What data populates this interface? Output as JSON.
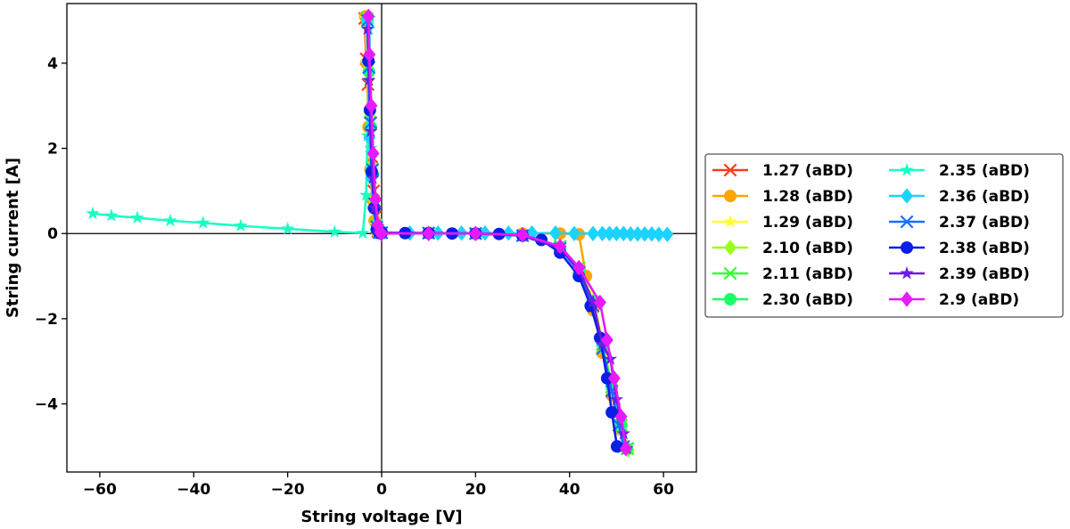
{
  "chart_data": {
    "type": "line",
    "xlabel": "String voltage [V]",
    "ylabel": "String current [A]",
    "xlim": [
      -67,
      67
    ],
    "ylim": [
      -5.6,
      5.4
    ],
    "x_ticks": [
      -60,
      -40,
      -20,
      0,
      20,
      40,
      60
    ],
    "y_ticks": [
      -4,
      -2,
      0,
      2,
      4
    ],
    "x_tick_labels": [
      "−60",
      "−40",
      "−20",
      "0",
      "20",
      "40",
      "60"
    ],
    "y_tick_labels": [
      "−4",
      "−2",
      "0",
      "2",
      "4"
    ],
    "grid": false,
    "zero_lines": true,
    "legend_position": "outside-right",
    "legend_columns": 2,
    "series": [
      {
        "name": "1.27 (aBD)",
        "color": "#ff3a1a",
        "marker": "x",
        "points": [
          [
            -3.6,
            5.05
          ],
          [
            -3.3,
            4.1
          ],
          [
            -2.9,
            3.5
          ],
          [
            -2.5,
            2.6
          ],
          [
            -2.1,
            1.8
          ],
          [
            -1.7,
            1.0
          ],
          [
            -1.3,
            0.4
          ],
          [
            -0.8,
            0.05
          ],
          [
            0,
            0.02
          ],
          [
            10,
            0.01
          ],
          [
            20,
            0.0
          ],
          [
            30,
            -0.05
          ],
          [
            38,
            -0.3
          ],
          [
            42,
            -0.8
          ],
          [
            45,
            -1.6
          ],
          [
            47,
            -2.6
          ],
          [
            49,
            -3.6
          ],
          [
            50.8,
            -4.5
          ],
          [
            52.3,
            -5.05
          ]
        ]
      },
      {
        "name": "1.28 (aBD)",
        "color": "#ffa500",
        "marker": "o",
        "points": [
          [
            -3.5,
            5.1
          ],
          [
            -3.2,
            4.0
          ],
          [
            -2.8,
            2.5
          ],
          [
            -2.4,
            1.5
          ],
          [
            -2.0,
            0.8
          ],
          [
            -1.5,
            0.3
          ],
          [
            -1.0,
            0.05
          ],
          [
            0,
            0.02
          ],
          [
            10,
            0.01
          ],
          [
            20,
            0.0
          ],
          [
            30,
            0.0
          ],
          [
            38,
            0.0
          ],
          [
            42,
            -0.02
          ],
          [
            43.5,
            -1.0
          ],
          [
            45,
            -1.8
          ],
          [
            47,
            -2.8
          ],
          [
            49,
            -3.8
          ],
          [
            50.8,
            -4.6
          ],
          [
            52,
            -5.05
          ]
        ]
      },
      {
        "name": "1.29 (aBD)",
        "color": "#ffff33",
        "marker": "*",
        "points": [
          [
            -3.3,
            5.05
          ],
          [
            -3.0,
            4.0
          ],
          [
            -2.6,
            2.8
          ],
          [
            -2.2,
            1.6
          ],
          [
            -1.8,
            0.8
          ],
          [
            -1.3,
            0.2
          ],
          [
            -0.8,
            0.03
          ],
          [
            0,
            0.02
          ],
          [
            10,
            0.01
          ],
          [
            20,
            0.0
          ],
          [
            30,
            -0.05
          ],
          [
            38,
            -0.35
          ],
          [
            42,
            -0.8
          ],
          [
            45,
            -1.5
          ],
          [
            47,
            -2.5
          ],
          [
            49,
            -3.5
          ],
          [
            51,
            -4.4
          ],
          [
            52.6,
            -5.1
          ]
        ]
      },
      {
        "name": "2.10 (aBD)",
        "color": "#99ff1a",
        "marker": "D",
        "points": [
          [
            -3.2,
            5.05
          ],
          [
            -2.9,
            4.0
          ],
          [
            -2.5,
            2.75
          ],
          [
            -2.1,
            1.6
          ],
          [
            -1.7,
            0.8
          ],
          [
            -1.2,
            0.2
          ],
          [
            -0.7,
            0.03
          ],
          [
            0,
            0.02
          ],
          [
            10,
            0.01
          ],
          [
            20,
            0.0
          ],
          [
            30,
            -0.05
          ],
          [
            38,
            -0.35
          ],
          [
            42,
            -0.85
          ],
          [
            45,
            -1.6
          ],
          [
            47,
            -2.6
          ],
          [
            49,
            -3.6
          ],
          [
            51,
            -4.5
          ],
          [
            52.5,
            -5.08
          ]
        ]
      },
      {
        "name": "2.11 (aBD)",
        "color": "#33ff33",
        "marker": "x",
        "points": [
          [
            -3.1,
            5.05
          ],
          [
            -2.8,
            3.9
          ],
          [
            -2.4,
            2.6
          ],
          [
            -2.0,
            1.5
          ],
          [
            -1.6,
            0.7
          ],
          [
            -1.1,
            0.2
          ],
          [
            -0.6,
            0.03
          ],
          [
            0,
            0.02
          ],
          [
            10,
            0.01
          ],
          [
            20,
            0.0
          ],
          [
            30,
            -0.05
          ],
          [
            38,
            -0.3
          ],
          [
            42,
            -0.8
          ],
          [
            45,
            -1.6
          ],
          [
            47,
            -2.6
          ],
          [
            49,
            -3.6
          ],
          [
            51,
            -4.5
          ],
          [
            52.4,
            -5.05
          ]
        ]
      },
      {
        "name": "2.30 (aBD)",
        "color": "#1aff66",
        "marker": "o",
        "points": [
          [
            -3.0,
            5.0
          ],
          [
            -2.7,
            3.8
          ],
          [
            -2.3,
            2.5
          ],
          [
            -1.9,
            1.4
          ],
          [
            -1.5,
            0.6
          ],
          [
            -1.0,
            0.15
          ],
          [
            -0.5,
            0.02
          ],
          [
            0,
            0.02
          ],
          [
            10,
            0.01
          ],
          [
            20,
            0.0
          ],
          [
            30,
            -0.05
          ],
          [
            38,
            -0.35
          ],
          [
            42,
            -0.85
          ],
          [
            45,
            -1.6
          ],
          [
            47,
            -2.6
          ],
          [
            49,
            -3.6
          ],
          [
            51,
            -4.5
          ],
          [
            52.2,
            -5.05
          ]
        ]
      },
      {
        "name": "2.35 (aBD)",
        "color": "#1affc4",
        "marker": "*",
        "points": [
          [
            -61.5,
            0.47
          ],
          [
            -57.5,
            0.42
          ],
          [
            -52,
            0.37
          ],
          [
            -45,
            0.3
          ],
          [
            -38,
            0.25
          ],
          [
            -30,
            0.18
          ],
          [
            -20,
            0.11
          ],
          [
            -10,
            0.04
          ],
          [
            -4,
            0.01
          ],
          [
            -3.3,
            0.9
          ],
          [
            -3.0,
            2.3
          ],
          [
            -2.8,
            3.6
          ],
          [
            -2.7,
            4.8
          ],
          [
            -2.6,
            5.05
          ],
          [
            -2.3,
            2.0
          ],
          [
            -1.8,
            0.6
          ],
          [
            -1.0,
            0.1
          ],
          [
            0,
            0.02
          ],
          [
            10,
            0.01
          ],
          [
            20,
            0.0
          ],
          [
            30,
            -0.05
          ],
          [
            38,
            -0.35
          ],
          [
            42,
            -0.9
          ],
          [
            45,
            -1.7
          ],
          [
            47,
            -2.7
          ],
          [
            49,
            -3.7
          ],
          [
            51,
            -4.6
          ],
          [
            52.1,
            -5.05
          ]
        ]
      },
      {
        "name": "2.36 (aBD)",
        "color": "#1ad4ff",
        "marker": "D",
        "points": [
          [
            -3.2,
            5.05
          ],
          [
            -2.9,
            4.05
          ],
          [
            -2.6,
            2.25
          ],
          [
            -2.2,
            1.3
          ],
          [
            -1.8,
            0.6
          ],
          [
            -1.2,
            0.1
          ],
          [
            -0.6,
            0.02
          ],
          [
            0,
            0.02
          ],
          [
            6,
            0.01
          ],
          [
            12,
            0.01
          ],
          [
            17,
            0.01
          ],
          [
            22,
            0.01
          ],
          [
            27,
            0.01
          ],
          [
            32,
            0.01
          ],
          [
            37,
            0.01
          ],
          [
            41,
            0.0
          ],
          [
            45,
            0.0
          ],
          [
            47,
            0.0
          ],
          [
            48.5,
            0.0
          ],
          [
            50,
            0.0
          ],
          [
            51.5,
            0.0
          ],
          [
            53,
            -0.01
          ],
          [
            54.5,
            -0.01
          ],
          [
            56,
            -0.01
          ],
          [
            57.5,
            -0.01
          ],
          [
            59,
            -0.02
          ],
          [
            60.8,
            -0.02
          ]
        ]
      },
      {
        "name": "2.37 (aBD)",
        "color": "#1a6cff",
        "marker": "x",
        "points": [
          [
            -3.0,
            5.0
          ],
          [
            -2.7,
            3.9
          ],
          [
            -2.3,
            2.6
          ],
          [
            -1.9,
            1.5
          ],
          [
            -1.5,
            0.7
          ],
          [
            -1.0,
            0.15
          ],
          [
            -0.5,
            0.02
          ],
          [
            0,
            0.02
          ],
          [
            10,
            0.01
          ],
          [
            20,
            0.0
          ],
          [
            30,
            -0.05
          ],
          [
            38,
            -0.35
          ],
          [
            42,
            -0.9
          ],
          [
            45,
            -1.7
          ],
          [
            47,
            -2.7
          ],
          [
            49,
            -3.7
          ],
          [
            50.5,
            -4.5
          ],
          [
            51.5,
            -5.0
          ]
        ]
      },
      {
        "name": "2.38 (aBD)",
        "color": "#0a1ee6",
        "marker": "o",
        "points": [
          [
            -2.8,
            4.05
          ],
          [
            -2.5,
            2.9
          ],
          [
            -2.1,
            1.45
          ],
          [
            -1.6,
            0.6
          ],
          [
            -1.0,
            0.1
          ],
          [
            -0.5,
            0.02
          ],
          [
            0,
            0.02
          ],
          [
            5,
            0.01
          ],
          [
            10,
            0.01
          ],
          [
            15,
            0.0
          ],
          [
            20,
            0.0
          ],
          [
            25,
            -0.01
          ],
          [
            30,
            -0.05
          ],
          [
            34,
            -0.15
          ],
          [
            38,
            -0.45
          ],
          [
            42,
            -1.0
          ],
          [
            44.5,
            -1.7
          ],
          [
            46.5,
            -2.45
          ],
          [
            48,
            -3.4
          ],
          [
            49,
            -4.2
          ],
          [
            50.1,
            -5.0
          ]
        ]
      },
      {
        "name": "2.39 (aBD)",
        "color": "#6a1ee6",
        "marker": "*",
        "points": [
          [
            -3.0,
            4.8
          ],
          [
            -2.7,
            3.6
          ],
          [
            -2.3,
            2.4
          ],
          [
            -1.9,
            1.3
          ],
          [
            -1.5,
            0.6
          ],
          [
            -1.0,
            0.15
          ],
          [
            -0.5,
            0.02
          ],
          [
            0,
            0.02
          ],
          [
            10,
            0.01
          ],
          [
            20,
            0.0
          ],
          [
            30,
            -0.05
          ],
          [
            38,
            -0.35
          ],
          [
            42,
            -0.85
          ],
          [
            45,
            -1.6
          ],
          [
            47,
            -2.6
          ],
          [
            48.7,
            -2.95
          ],
          [
            50,
            -3.9
          ],
          [
            51.5,
            -4.7
          ],
          [
            52.2,
            -5.05
          ]
        ]
      },
      {
        "name": "2.9 (aBD)",
        "color": "#e61aff",
        "marker": "D",
        "points": [
          [
            -2.8,
            5.1
          ],
          [
            -2.6,
            4.2
          ],
          [
            -2.2,
            3.0
          ],
          [
            -1.8,
            1.88
          ],
          [
            -1.3,
            0.8
          ],
          [
            -0.8,
            0.2
          ],
          [
            -0.3,
            0.02
          ],
          [
            0,
            0.0
          ],
          [
            10,
            0.0
          ],
          [
            20,
            0.0
          ],
          [
            30,
            -0.03
          ],
          [
            38,
            -0.3
          ],
          [
            42,
            -0.8
          ],
          [
            46.5,
            -1.62
          ],
          [
            48,
            -2.5
          ],
          [
            49.5,
            -3.4
          ],
          [
            51,
            -4.3
          ],
          [
            52,
            -5.05
          ]
        ]
      }
    ]
  }
}
